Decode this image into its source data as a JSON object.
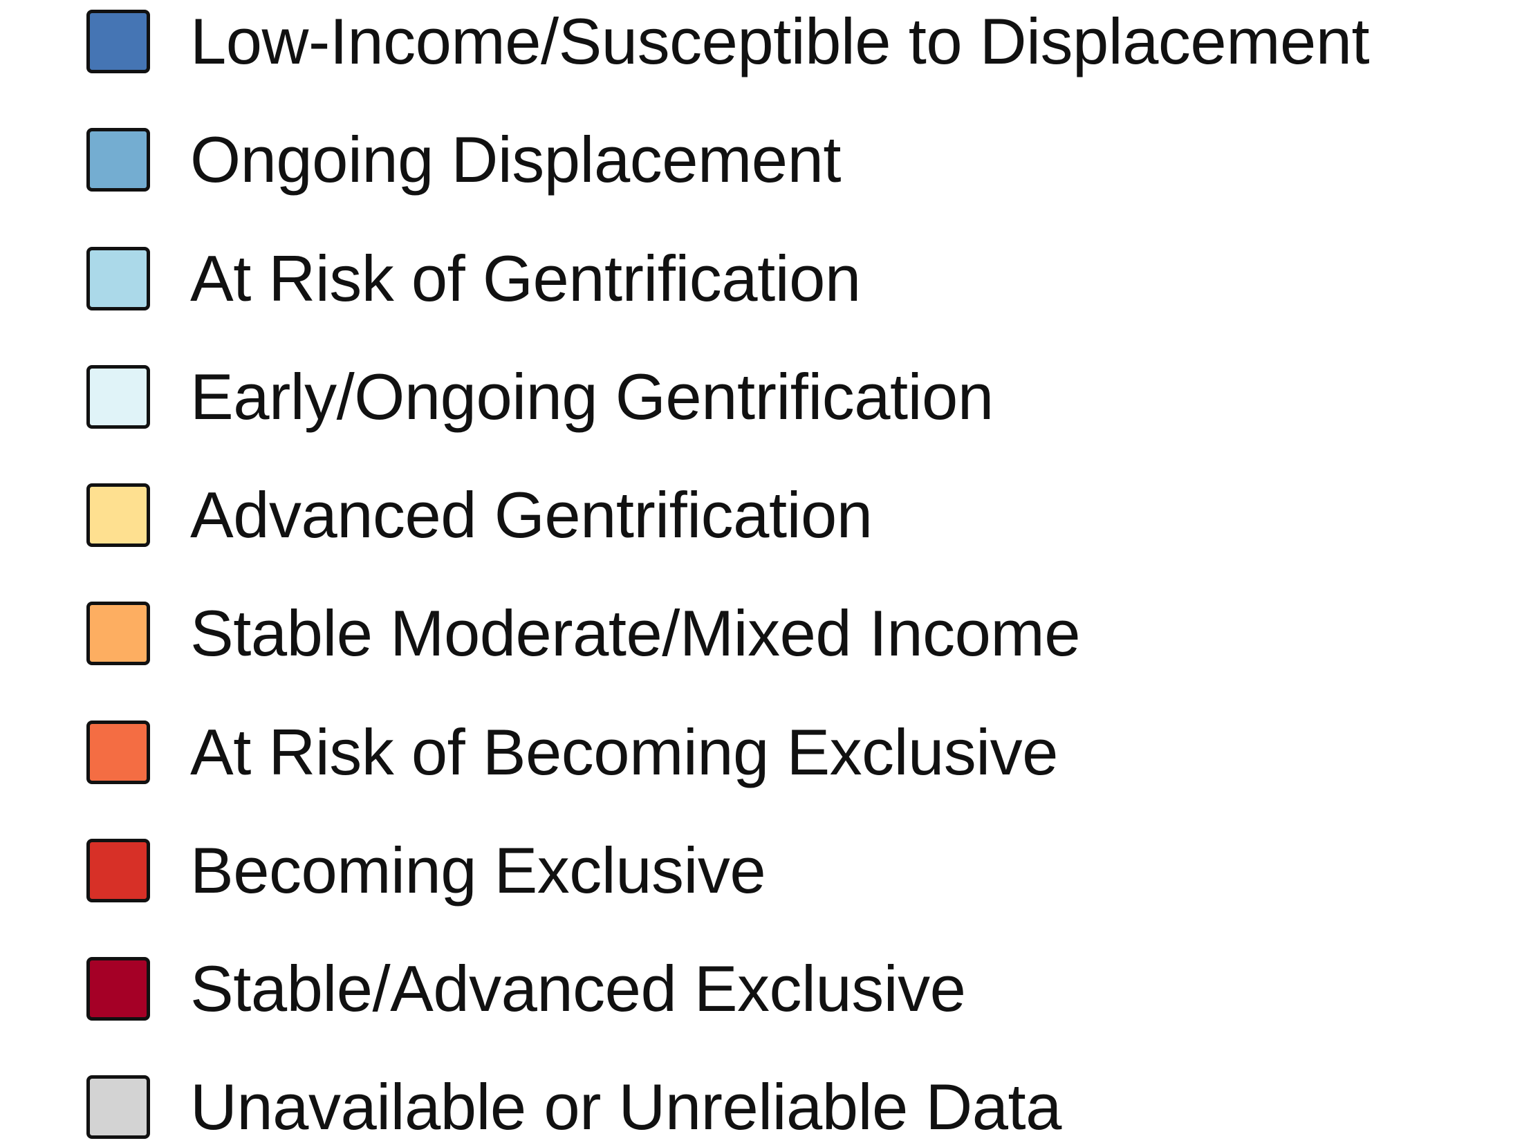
{
  "legend": {
    "items": [
      {
        "label": "Low-Income/Susceptible to Displacement",
        "color": "#4575b4"
      },
      {
        "label": "Ongoing Displacement",
        "color": "#74add1"
      },
      {
        "label": "At Risk of Gentrification",
        "color": "#abd9e9"
      },
      {
        "label": "Early/Ongoing Gentrification",
        "color": "#e0f3f8"
      },
      {
        "label": "Advanced Gentrification",
        "color": "#fee090"
      },
      {
        "label": "Stable Moderate/Mixed Income",
        "color": "#fdae61"
      },
      {
        "label": "At Risk of Becoming Exclusive",
        "color": "#f46d43"
      },
      {
        "label": "Becoming Exclusive",
        "color": "#d73027"
      },
      {
        "label": "Stable/Advanced Exclusive",
        "color": "#a50026"
      },
      {
        "label": "Unavailable or Unreliable Data",
        "color": "#d3d3d3"
      }
    ]
  }
}
